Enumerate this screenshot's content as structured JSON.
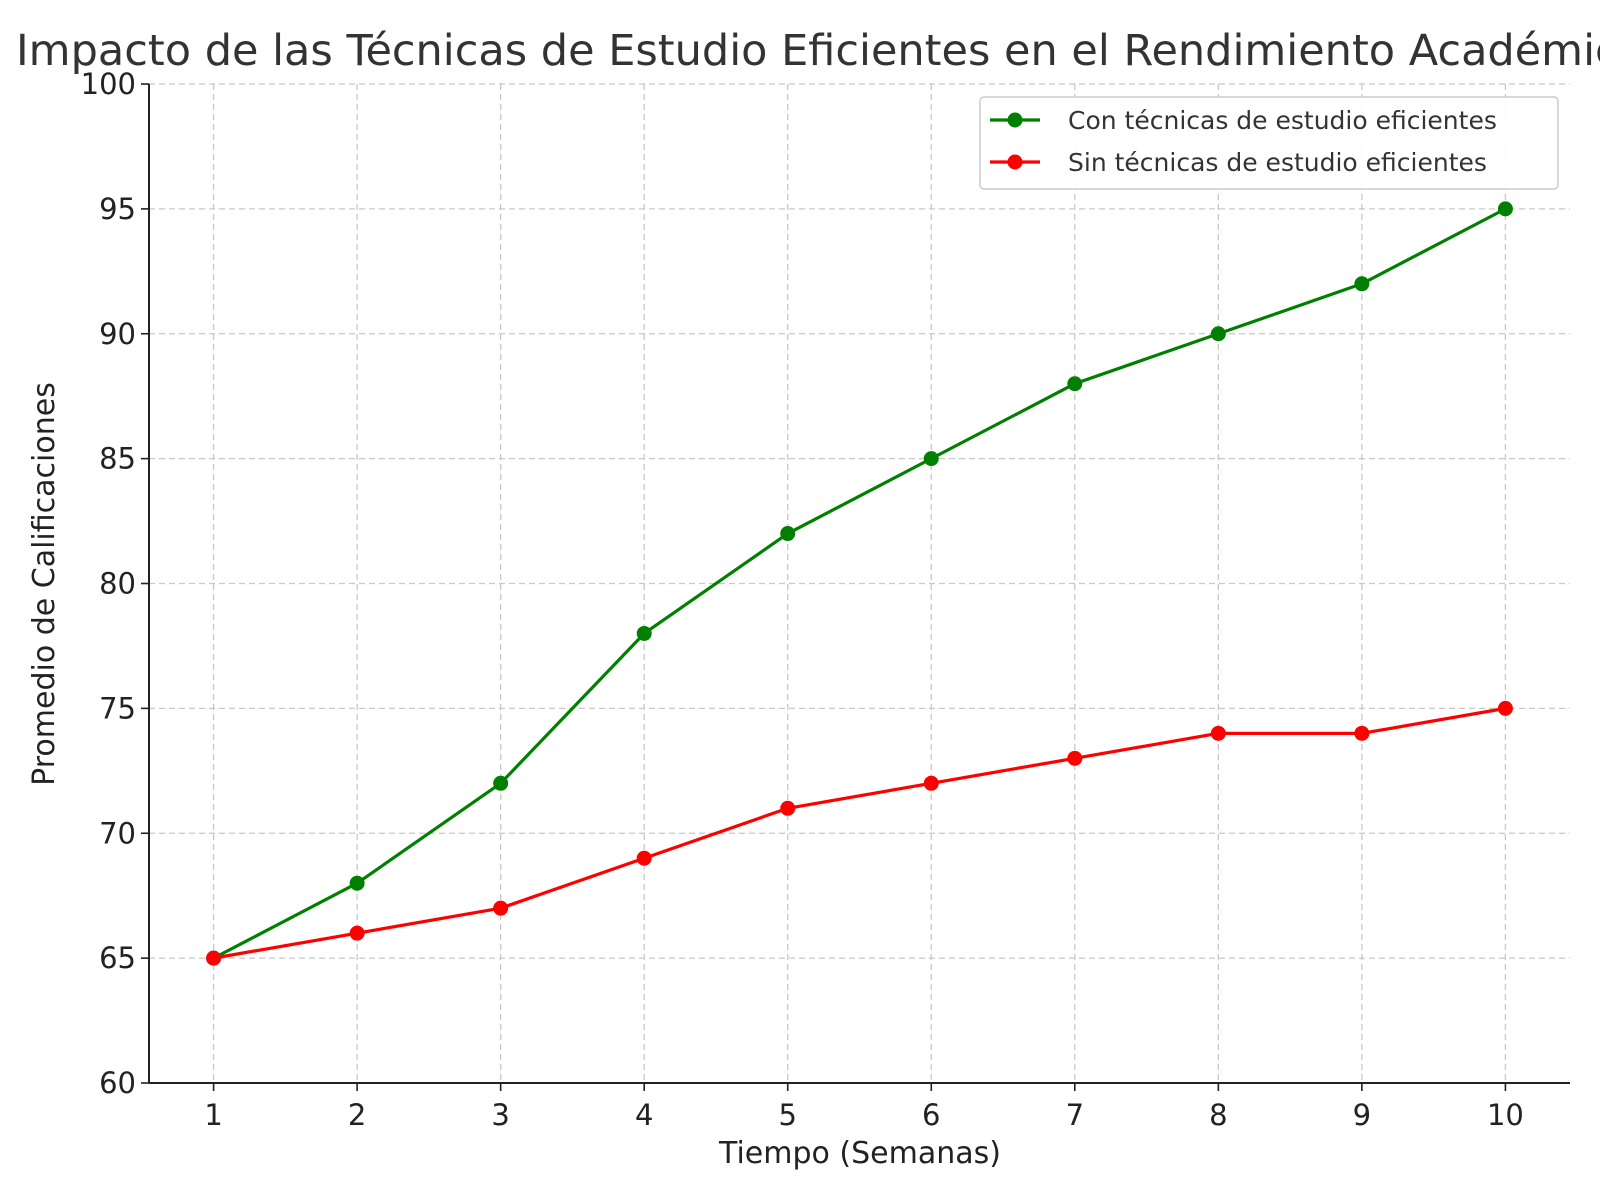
{
  "chart_data": {
    "type": "line",
    "title": "Impacto de las Técnicas de Estudio Eficientes en el Rendimiento Académico",
    "xlabel": "Tiempo (Semanas)",
    "ylabel": "Promedio de Calificaciones",
    "x": [
      1,
      2,
      3,
      4,
      5,
      6,
      7,
      8,
      9,
      10
    ],
    "x_ticks": [
      "1",
      "2",
      "3",
      "4",
      "5",
      "6",
      "7",
      "8",
      "9",
      "10"
    ],
    "y_ticks": [
      "60",
      "65",
      "70",
      "75",
      "80",
      "85",
      "90",
      "95",
      "100"
    ],
    "xlim": [
      0.55,
      10.45
    ],
    "ylim": [
      60,
      100
    ],
    "grid": true,
    "grid_style": "dashed",
    "legend_position": "top-right",
    "series": [
      {
        "name": "Con técnicas de estudio eficientes",
        "color": "#008000",
        "marker": "circle",
        "values": [
          65,
          68,
          72,
          78,
          82,
          85,
          88,
          90,
          92,
          95
        ]
      },
      {
        "name": "Sin técnicas de estudio eficientes",
        "color": "#ff0000",
        "marker": "circle",
        "values": [
          65,
          66,
          67,
          69,
          71,
          72,
          73,
          74,
          74,
          75
        ]
      }
    ]
  }
}
